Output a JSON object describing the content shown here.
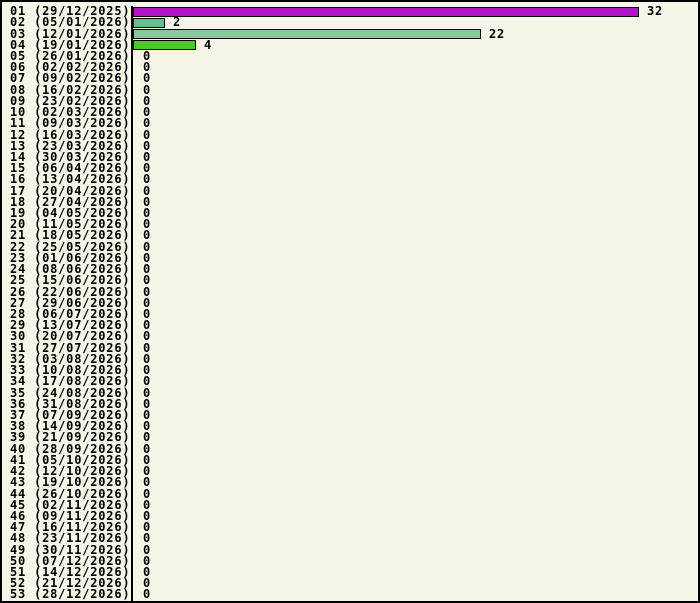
{
  "chart_data": {
    "type": "bar",
    "orientation": "horizontal",
    "title": "",
    "xlabel": "",
    "ylabel": "",
    "xlim": [
      0,
      36
    ],
    "grid": false,
    "legend": false,
    "value_labels_shown": true,
    "background_color": "#f5f5e8",
    "border_color": "#000000",
    "axis_color": "#000000",
    "text_color": "#000000",
    "categories": [
      "01 (29/12/2025)",
      "02 (05/01/2026)",
      "03 (12/01/2026)",
      "04 (19/01/2026)",
      "05 (26/01/2026)",
      "06 (02/02/2026)",
      "07 (09/02/2026)",
      "08 (16/02/2026)",
      "09 (23/02/2026)",
      "10 (02/03/2026)",
      "11 (09/03/2026)",
      "12 (16/03/2026)",
      "13 (23/03/2026)",
      "14 (30/03/2026)",
      "15 (06/04/2026)",
      "16 (13/04/2026)",
      "17 (20/04/2026)",
      "18 (27/04/2026)",
      "19 (04/05/2026)",
      "20 (11/05/2026)",
      "21 (18/05/2026)",
      "22 (25/05/2026)",
      "23 (01/06/2026)",
      "24 (08/06/2026)",
      "25 (15/06/2026)",
      "26 (22/06/2026)",
      "27 (29/06/2026)",
      "28 (06/07/2026)",
      "29 (13/07/2026)",
      "30 (20/07/2026)",
      "31 (27/07/2026)",
      "32 (03/08/2026)",
      "33 (10/08/2026)",
      "34 (17/08/2026)",
      "35 (24/08/2026)",
      "36 (31/08/2026)",
      "37 (07/09/2026)",
      "38 (14/09/2026)",
      "39 (21/09/2026)",
      "40 (28/09/2026)",
      "41 (05/10/2026)",
      "42 (12/10/2026)",
      "43 (19/10/2026)",
      "44 (26/10/2026)",
      "45 (02/11/2026)",
      "46 (09/11/2026)",
      "47 (16/11/2026)",
      "48 (23/11/2026)",
      "49 (30/11/2026)",
      "50 (07/12/2026)",
      "51 (14/12/2026)",
      "52 (21/12/2026)",
      "53 (28/12/2026)"
    ],
    "values": [
      32,
      2,
      22,
      4,
      0,
      0,
      0,
      0,
      0,
      0,
      0,
      0,
      0,
      0,
      0,
      0,
      0,
      0,
      0,
      0,
      0,
      0,
      0,
      0,
      0,
      0,
      0,
      0,
      0,
      0,
      0,
      0,
      0,
      0,
      0,
      0,
      0,
      0,
      0,
      0,
      0,
      0,
      0,
      0,
      0,
      0,
      0,
      0,
      0,
      0,
      0,
      0,
      0
    ],
    "bar_colors": [
      "#b414c8",
      "#65bf90",
      "#8fc49c",
      "#50c52e"
    ]
  }
}
